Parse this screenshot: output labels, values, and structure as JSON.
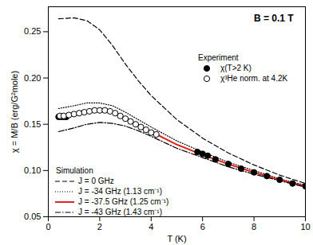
{
  "chart_data": {
    "type": "line",
    "x_label": "T (K)",
    "y_label": "χ = M/B (erg/G²mole)",
    "annotations": [
      "B = 0.1 T",
      "Experiment",
      "Simulation"
    ],
    "xlim": [
      0,
      10
    ],
    "xticks": [
      0,
      2,
      4,
      6,
      8,
      10
    ],
    "ylim": [
      0.05,
      0.277
    ],
    "yticks": [
      0.05,
      {
        "value": 0.1,
        "label": "0.10"
      },
      0.15,
      {
        "value": 0.2,
        "label": "0.20"
      },
      0.25
    ],
    "grid": false,
    "series": [
      {
        "name": "J = 0 GHz",
        "type": "line",
        "color": "#000000",
        "line_style": "dashed",
        "x": [
          0.4,
          1,
          1.5,
          2,
          2.5,
          3,
          3.5,
          4,
          5,
          6,
          7,
          8,
          9,
          10
        ],
        "values": [
          0.264,
          0.265,
          0.262,
          0.252,
          0.235,
          0.215,
          0.197,
          0.181,
          0.155,
          0.135,
          0.119,
          0.106,
          0.095,
          0.086
        ]
      },
      {
        "name": "J = -34 GHz (1.13 cm⁻¹)",
        "type": "line",
        "color": "#000000",
        "line_style": "dotted",
        "x": [
          0.4,
          1,
          1.5,
          2,
          2.5,
          3,
          3.5,
          4,
          5,
          6,
          7,
          8,
          9,
          10
        ],
        "values": [
          0.167,
          0.17,
          0.173,
          0.173,
          0.17,
          0.163,
          0.155,
          0.147,
          0.132,
          0.12,
          0.109,
          0.1,
          0.091,
          0.084
        ]
      },
      {
        "name": "J = -37.5 GHz (1.25 cm⁻¹)",
        "type": "line",
        "color": "#e3241b",
        "line_style": "solid",
        "x": [
          0.4,
          1,
          1.5,
          2,
          2.5,
          3,
          3.5,
          4,
          5,
          6,
          7,
          8,
          9,
          10
        ],
        "values": [
          0.158,
          0.16,
          0.163,
          0.165,
          0.163,
          0.157,
          0.149,
          0.142,
          0.128,
          0.117,
          0.107,
          0.098,
          0.09,
          0.083
        ]
      },
      {
        "name": "J = -43 GHz (1.43 cm⁻¹)",
        "type": "line",
        "color": "#000000",
        "line_style": "dashdot",
        "x": [
          0.4,
          1,
          1.5,
          2,
          2.5,
          3,
          3.5,
          4,
          5,
          6,
          7,
          8,
          9,
          10
        ],
        "values": [
          0.142,
          0.146,
          0.15,
          0.152,
          0.151,
          0.148,
          0.143,
          0.137,
          0.124,
          0.114,
          0.104,
          0.096,
          0.089,
          0.082
        ]
      },
      {
        "name": "χ(T>2 K)",
        "type": "scatter",
        "color": "#000000",
        "marker": "circle",
        "x": [
          0.4,
          0.5,
          0.6,
          0.7,
          5.8,
          6.0,
          6.2,
          6.5,
          7,
          7.5,
          8,
          8.5,
          9,
          9.5,
          10
        ],
        "values": [
          0.158,
          0.158,
          0.158,
          0.158,
          0.12,
          0.118,
          0.116,
          0.112,
          0.107,
          0.102,
          0.098,
          0.094,
          0.09,
          0.086,
          0.083
        ]
      },
      {
        "name": "χ³He norm. at 4.2K",
        "type": "scatter",
        "color": "#000000",
        "marker": "open circle",
        "x": [
          0.45,
          0.6,
          0.8,
          1.0,
          1.2,
          1.4,
          1.6,
          1.8,
          2.0,
          2.2,
          2.4,
          2.6,
          2.8,
          3.0,
          3.2,
          3.4,
          3.6,
          3.8,
          4.0,
          4.2
        ],
        "values": [
          0.159,
          0.159,
          0.16,
          0.161,
          0.162,
          0.163,
          0.164,
          0.165,
          0.165,
          0.165,
          0.164,
          0.162,
          0.159,
          0.156,
          0.153,
          0.15,
          0.147,
          0.144,
          0.141,
          0.139
        ]
      }
    ]
  }
}
